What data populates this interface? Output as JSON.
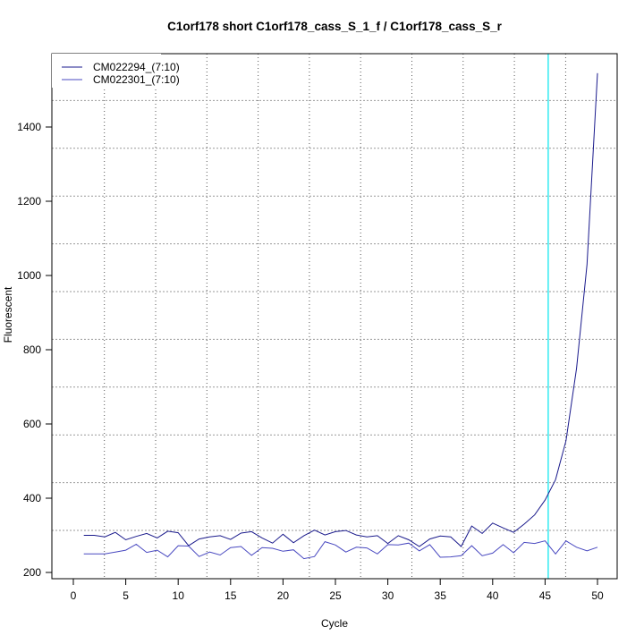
{
  "chart_data": {
    "type": "line",
    "title": "C1orf178 short C1orf178_cass_S_1_f / C1orf178_cass_S_r",
    "xlabel": "Cycle",
    "ylabel": "Fluorescent",
    "xlim": [
      -1,
      52
    ],
    "ylim": [
      180,
      1580
    ],
    "xticks": [
      0,
      5,
      10,
      15,
      20,
      25,
      30,
      35,
      40,
      45,
      50
    ],
    "yticks": [
      200,
      400,
      600,
      800,
      1000,
      1200,
      1400
    ],
    "grid": true,
    "legend_position": "top-left",
    "threshold_cycle": 45.3,
    "threshold_color": "#00e5ee",
    "x": [
      1,
      2,
      3,
      4,
      5,
      6,
      7,
      8,
      9,
      10,
      11,
      12,
      13,
      14,
      15,
      16,
      17,
      18,
      19,
      20,
      21,
      22,
      23,
      24,
      25,
      26,
      27,
      28,
      29,
      30,
      31,
      32,
      33,
      34,
      35,
      36,
      37,
      38,
      39,
      40,
      41,
      42,
      43,
      44,
      45,
      46,
      47,
      48,
      49,
      50
    ],
    "series": [
      {
        "name": "CM022294_(7:10)",
        "color": "#1a1a8c",
        "values": [
          300,
          300,
          296,
          308,
          288,
          297,
          305,
          293,
          311,
          307,
          272,
          290,
          296,
          299,
          289,
          306,
          310,
          293,
          279,
          303,
          280,
          299,
          314,
          301,
          310,
          313,
          301,
          296,
          299,
          278,
          299,
          288,
          270,
          290,
          298,
          296,
          270,
          325,
          305,
          333,
          320,
          308,
          330,
          355,
          395,
          450,
          555,
          750,
          1030,
          1545
        ]
      },
      {
        "name": "CM022301_(7:10)",
        "color": "#4848c0",
        "values": [
          250,
          250,
          250,
          255,
          260,
          276,
          254,
          260,
          242,
          272,
          271,
          243,
          255,
          247,
          267,
          270,
          246,
          267,
          265,
          257,
          261,
          237,
          243,
          283,
          274,
          255,
          268,
          266,
          250,
          275,
          274,
          279,
          258,
          275,
          241,
          242,
          245,
          272,
          245,
          252,
          275,
          253,
          281,
          278,
          285,
          250,
          285,
          268,
          258,
          268
        ]
      }
    ]
  }
}
